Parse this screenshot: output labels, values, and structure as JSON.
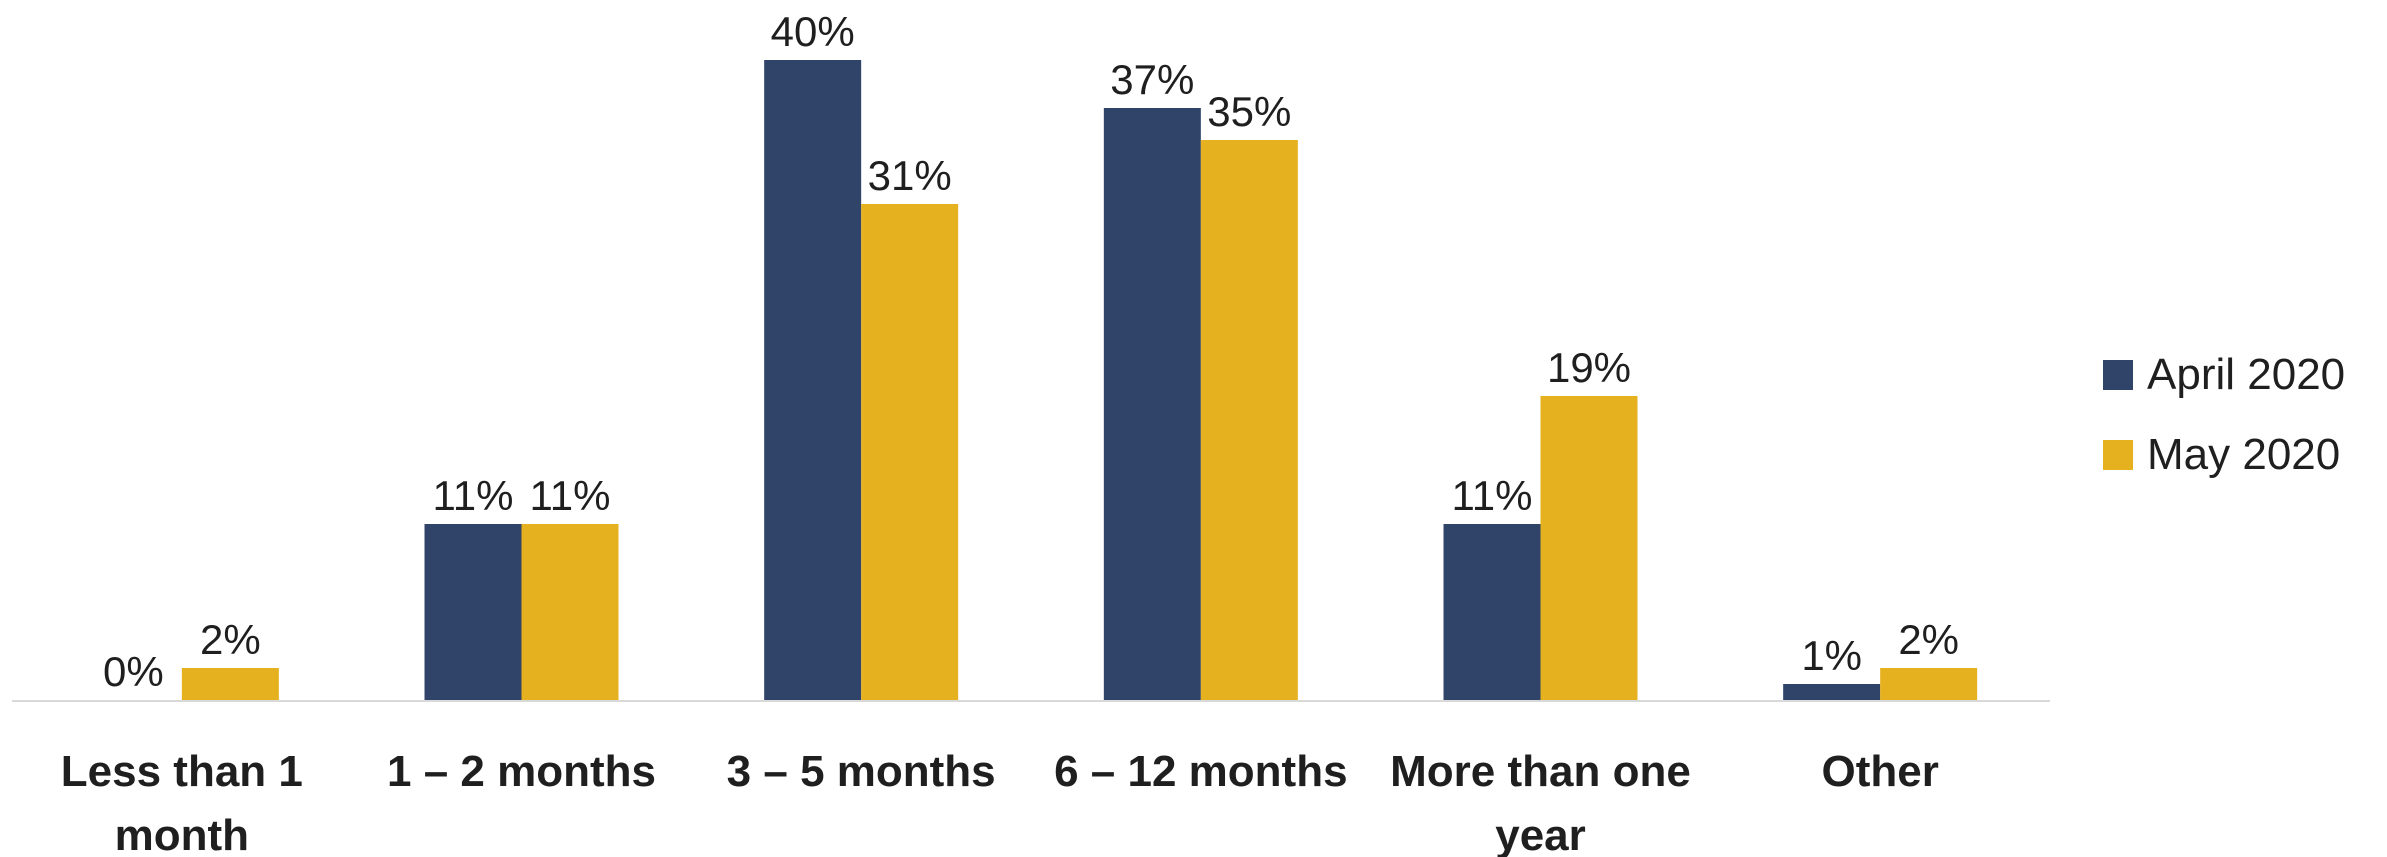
{
  "chart_data": {
    "type": "bar",
    "title": "",
    "xlabel": "",
    "ylabel": "",
    "ylim": [
      0,
      40
    ],
    "grid": false,
    "legend_position": "right",
    "categories": [
      [
        "Less than 1",
        "month"
      ],
      [
        "1 – 2 months"
      ],
      [
        "3 – 5 months"
      ],
      [
        "6 – 12 months"
      ],
      [
        "More than one",
        "year"
      ],
      [
        "Other"
      ]
    ],
    "series": [
      {
        "name": "April 2020",
        "color": "#304469",
        "values": [
          0,
          11,
          40,
          37,
          11,
          1
        ],
        "labels": [
          "0%",
          "11%",
          "40%",
          "37%",
          "11%",
          "1%"
        ]
      },
      {
        "name": "May 2020",
        "color": "#E5B11E",
        "values": [
          2,
          11,
          31,
          35,
          19,
          2
        ],
        "labels": [
          "2%",
          "11%",
          "31%",
          "35%",
          "19%",
          "2%"
        ]
      }
    ]
  }
}
